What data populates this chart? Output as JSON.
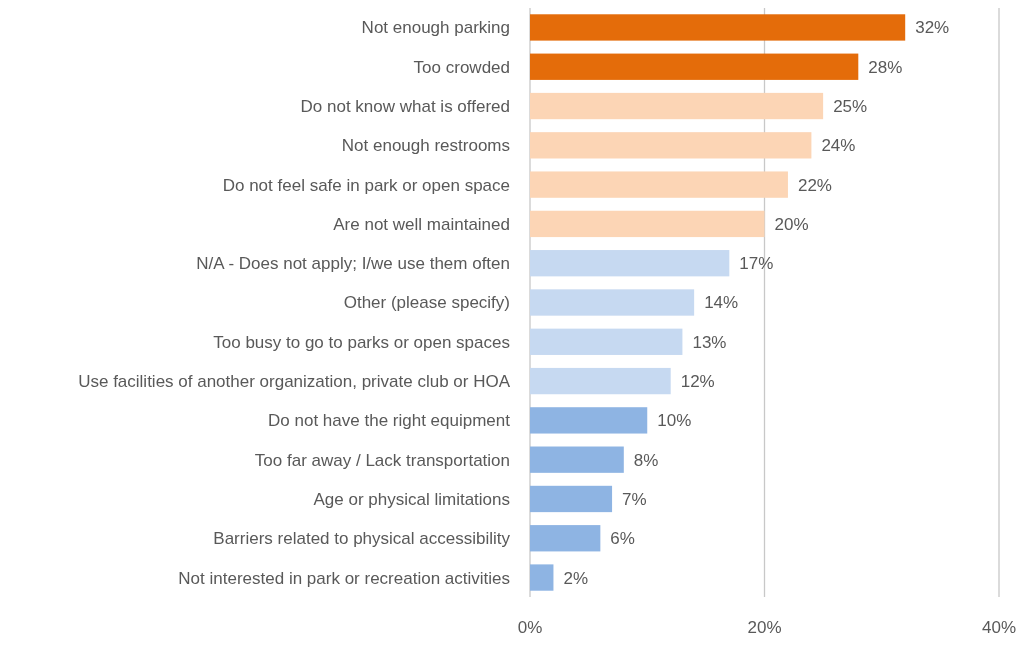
{
  "chart_data": {
    "type": "bar",
    "orientation": "horizontal",
    "categories": [
      "Not enough parking",
      "Too crowded",
      "Do not know what is offered",
      "Not enough restrooms",
      "Do not feel safe in park or open space",
      "Are not well maintained",
      "N/A - Does not apply; I/we use them often",
      "Other (please specify)",
      "Too busy to go to parks or open spaces",
      "Use facilities of another organization, private club or HOA",
      "Do not have the right equipment",
      "Too far away / Lack transportation",
      "Age or physical limitations",
      "Barriers related to physical accessibility",
      "Not interested in park or recreation activities"
    ],
    "values": [
      32,
      28,
      25,
      24,
      22,
      20,
      17,
      14,
      13,
      12,
      10,
      8,
      7,
      6,
      2
    ],
    "value_labels": [
      "32%",
      "28%",
      "25%",
      "24%",
      "22%",
      "20%",
      "17%",
      "14%",
      "13%",
      "12%",
      "10%",
      "8%",
      "7%",
      "6%",
      "2%"
    ],
    "colors": [
      "#e46c0a",
      "#e46c0a",
      "#fcd5b5",
      "#fcd5b5",
      "#fcd5b5",
      "#fcd5b5",
      "#c6d9f1",
      "#c6d9f1",
      "#c6d9f1",
      "#c6d9f1",
      "#8eb4e3",
      "#8eb4e3",
      "#8eb4e3",
      "#8eb4e3",
      "#8eb4e3"
    ],
    "xlim": [
      0,
      40
    ],
    "xticks": [
      {
        "value": 0,
        "label": "0%"
      },
      {
        "value": 20,
        "label": "20%"
      },
      {
        "value": 40,
        "label": "40%"
      }
    ],
    "grid": "x"
  }
}
